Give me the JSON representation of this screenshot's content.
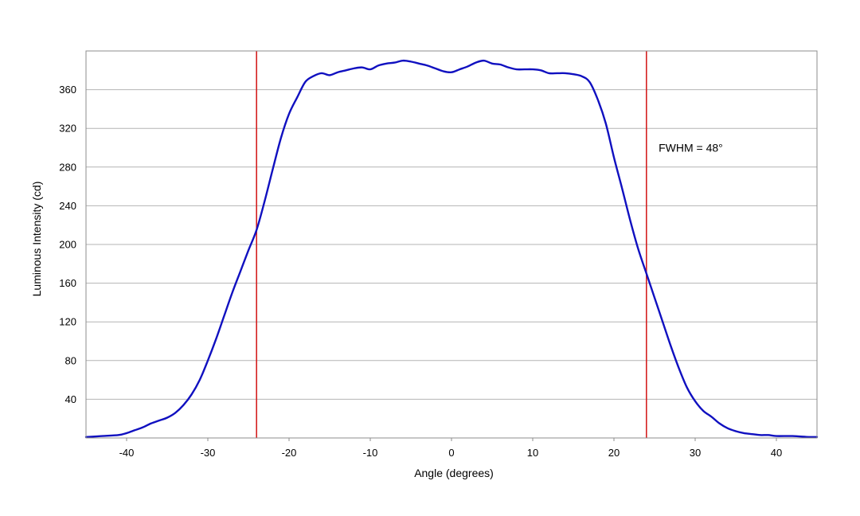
{
  "chart_data": {
    "type": "line",
    "title": "",
    "xlabel": "Angle (degrees)",
    "ylabel": "Luminous Intensity (cd)",
    "xlim": [
      -45,
      45
    ],
    "ylim": [
      0,
      400
    ],
    "xticks": [
      -40,
      -30,
      -20,
      -10,
      0,
      10,
      20,
      30,
      40
    ],
    "yticks": [
      40,
      80,
      120,
      160,
      200,
      240,
      280,
      320,
      360
    ],
    "grid": "horizontal",
    "legend": "none",
    "colors": {
      "series": "#1010c0",
      "markers": "#d42020",
      "grid": "#b4b4b4",
      "frame": "#8c8c8c"
    },
    "series": [
      {
        "x": [
          -45,
          -43,
          -41,
          -40,
          -39,
          -38,
          -37,
          -36,
          -35,
          -34,
          -33,
          -32,
          -31,
          -30,
          -29,
          -28,
          -27,
          -26,
          -25,
          -24,
          -23,
          -22,
          -21,
          -20,
          -19,
          -18,
          -17,
          -16,
          -15,
          -14,
          -13,
          -12,
          -11,
          -10,
          -9,
          -8,
          -7,
          -6,
          -5,
          -4,
          -3,
          -2,
          -1,
          0,
          1,
          2,
          3,
          4,
          5,
          6,
          7,
          8,
          9,
          10,
          11,
          12,
          13,
          14,
          15,
          16,
          17,
          18,
          19,
          20,
          21,
          22,
          23,
          24,
          25,
          26,
          27,
          28,
          29,
          30,
          31,
          32,
          33,
          34,
          35,
          36,
          37,
          38,
          39,
          40,
          42,
          44,
          45
        ],
        "values": [
          1,
          2,
          3,
          5,
          8,
          11,
          15,
          18,
          21,
          26,
          34,
          45,
          60,
          80,
          102,
          126,
          150,
          172,
          194,
          215,
          245,
          278,
          310,
          335,
          352,
          368,
          374,
          377,
          375,
          378,
          380,
          382,
          383,
          381,
          385,
          387,
          388,
          390,
          389,
          387,
          385,
          382,
          379,
          378,
          381,
          384,
          388,
          390,
          387,
          386,
          383,
          381,
          381,
          381,
          380,
          377,
          377,
          377,
          376,
          374,
          368,
          350,
          325,
          290,
          258,
          225,
          195,
          170,
          145,
          120,
          95,
          72,
          52,
          38,
          28,
          22,
          15,
          10,
          7,
          5,
          4,
          3,
          3,
          2,
          2,
          1,
          1
        ]
      }
    ],
    "markers": [
      -24,
      24
    ],
    "annotations": [
      {
        "text": "FWHM = 48°",
        "x": 25.5,
        "y": 296
      }
    ]
  }
}
